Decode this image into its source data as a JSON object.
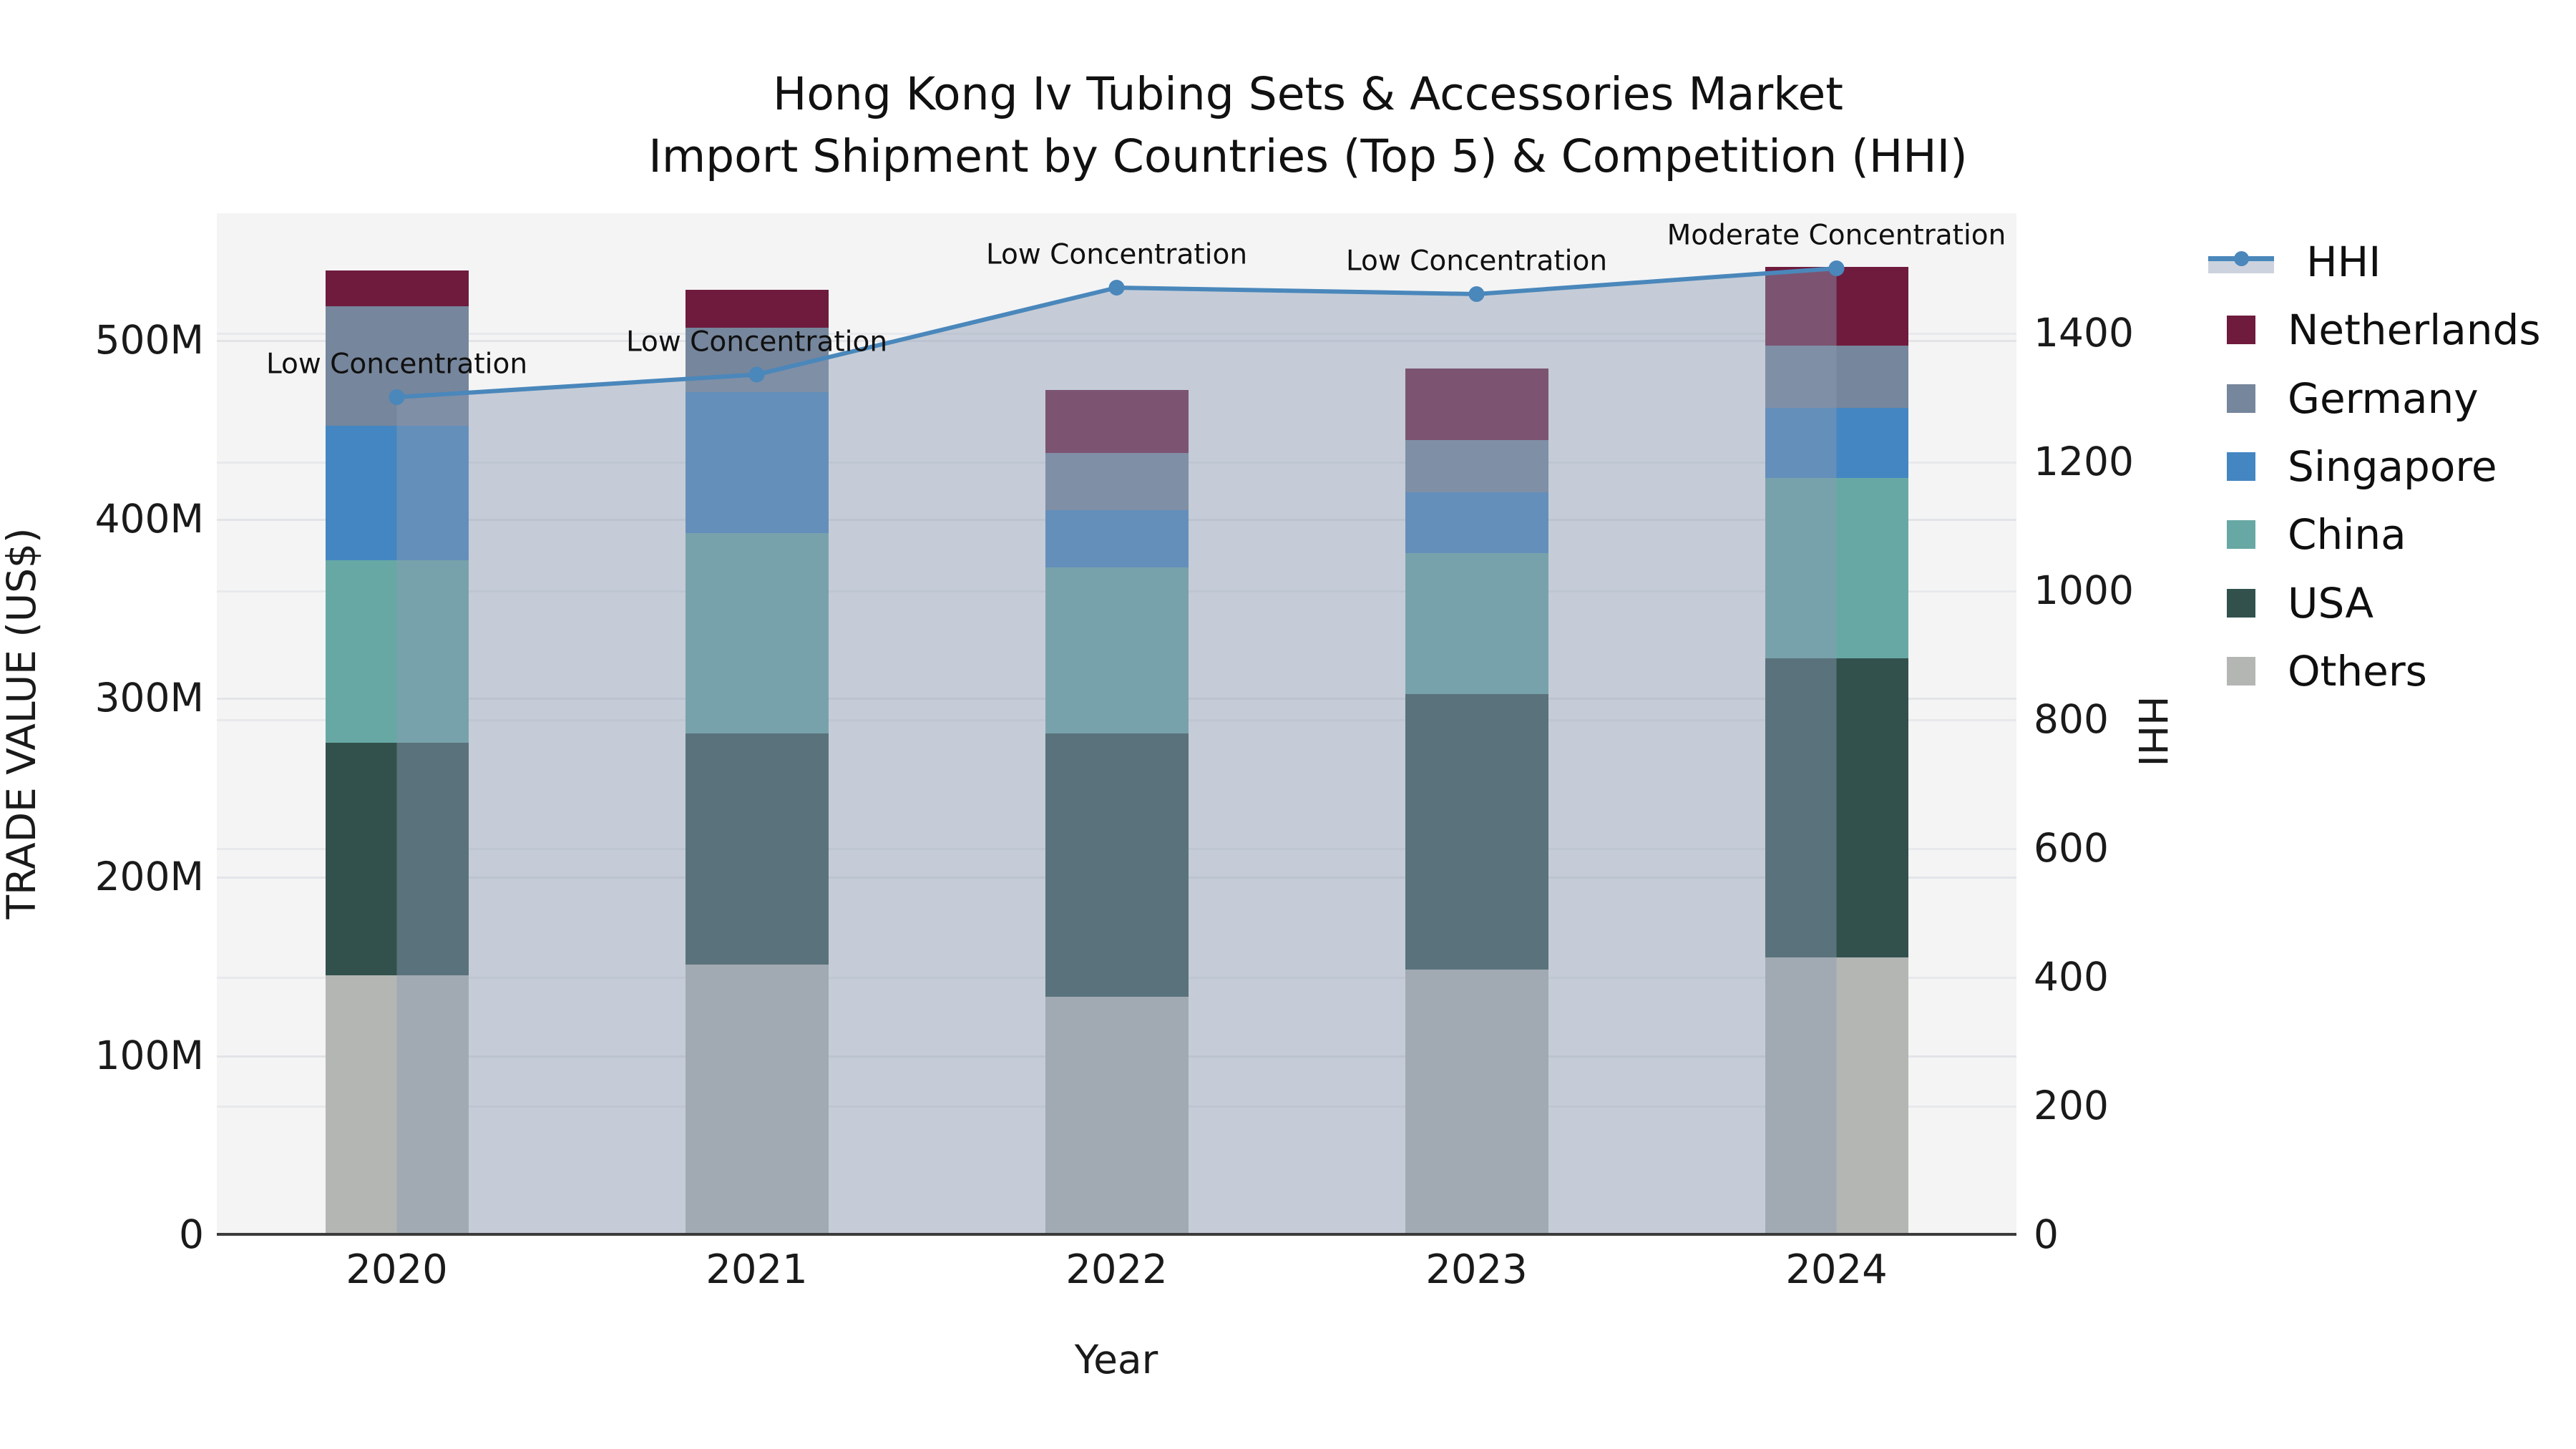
{
  "title": {
    "line1": "Hong Kong Iv Tubing Sets & Accessories Market",
    "line2": "Import Shipment by Countries (Top 5) & Competition (HHI)"
  },
  "chart_data": {
    "type": "stacked-bar+line",
    "categories": [
      "2020",
      "2021",
      "2022",
      "2023",
      "2024"
    ],
    "xlabel": "Year",
    "ylabel_left": "TRADE VALUE (US$)",
    "ylabel_right": "HHI",
    "y_left": {
      "unit": "M US$",
      "range": [
        0,
        571
      ],
      "ticks": [
        {
          "value": 0,
          "label": "0"
        },
        {
          "value": 100,
          "label": "100M"
        },
        {
          "value": 200,
          "label": "200M"
        },
        {
          "value": 300,
          "label": "300M"
        },
        {
          "value": 400,
          "label": "400M"
        },
        {
          "value": 500,
          "label": "500M"
        }
      ]
    },
    "y_right": {
      "range": [
        0,
        1586
      ],
      "ticks": [
        {
          "value": 0,
          "label": "0"
        },
        {
          "value": 200,
          "label": "200"
        },
        {
          "value": 400,
          "label": "400"
        },
        {
          "value": 600,
          "label": "600"
        },
        {
          "value": 800,
          "label": "800"
        },
        {
          "value": 1000,
          "label": "1000"
        },
        {
          "value": 1200,
          "label": "1200"
        },
        {
          "value": 1400,
          "label": "1400"
        }
      ]
    },
    "series": [
      {
        "name": "Others",
        "color": "#b3b6b3",
        "values": [
          145,
          151,
          133,
          148,
          155
        ]
      },
      {
        "name": "USA",
        "color": "#32514d",
        "values": [
          130,
          129,
          147,
          154,
          167
        ]
      },
      {
        "name": "China",
        "color": "#68a8a4",
        "values": [
          102,
          112,
          93,
          79,
          101
        ]
      },
      {
        "name": "Singapore",
        "color": "#4486c2",
        "values": [
          75,
          79,
          32,
          34,
          39
        ]
      },
      {
        "name": "Germany",
        "color": "#76869c",
        "values": [
          67,
          36,
          32,
          29,
          35
        ]
      },
      {
        "name": "Netherlands",
        "color": "#6f1b3d",
        "values": [
          20,
          21,
          35,
          40,
          44
        ]
      }
    ],
    "bar_totals": [
      539,
      528,
      472,
      484,
      541
    ],
    "line_series": {
      "name": "HHI",
      "color": "#4a87bb",
      "area_fill": "rgba(140,155,180,0.45)",
      "values": [
        1300,
        1335,
        1470,
        1460,
        1500
      ]
    },
    "annotations": [
      {
        "year": "2020",
        "text": "Low Concentration"
      },
      {
        "year": "2021",
        "text": "Low Concentration"
      },
      {
        "year": "2022",
        "text": "Low Concentration"
      },
      {
        "year": "2023",
        "text": "Low Concentration"
      },
      {
        "year": "2024",
        "text": "Moderate Concentration"
      }
    ],
    "colors": {
      "plot_bg": "#f4f4f5",
      "grid": "#e2e4e8",
      "axis_line": "#3b3b3b"
    },
    "legend_position": "right"
  }
}
